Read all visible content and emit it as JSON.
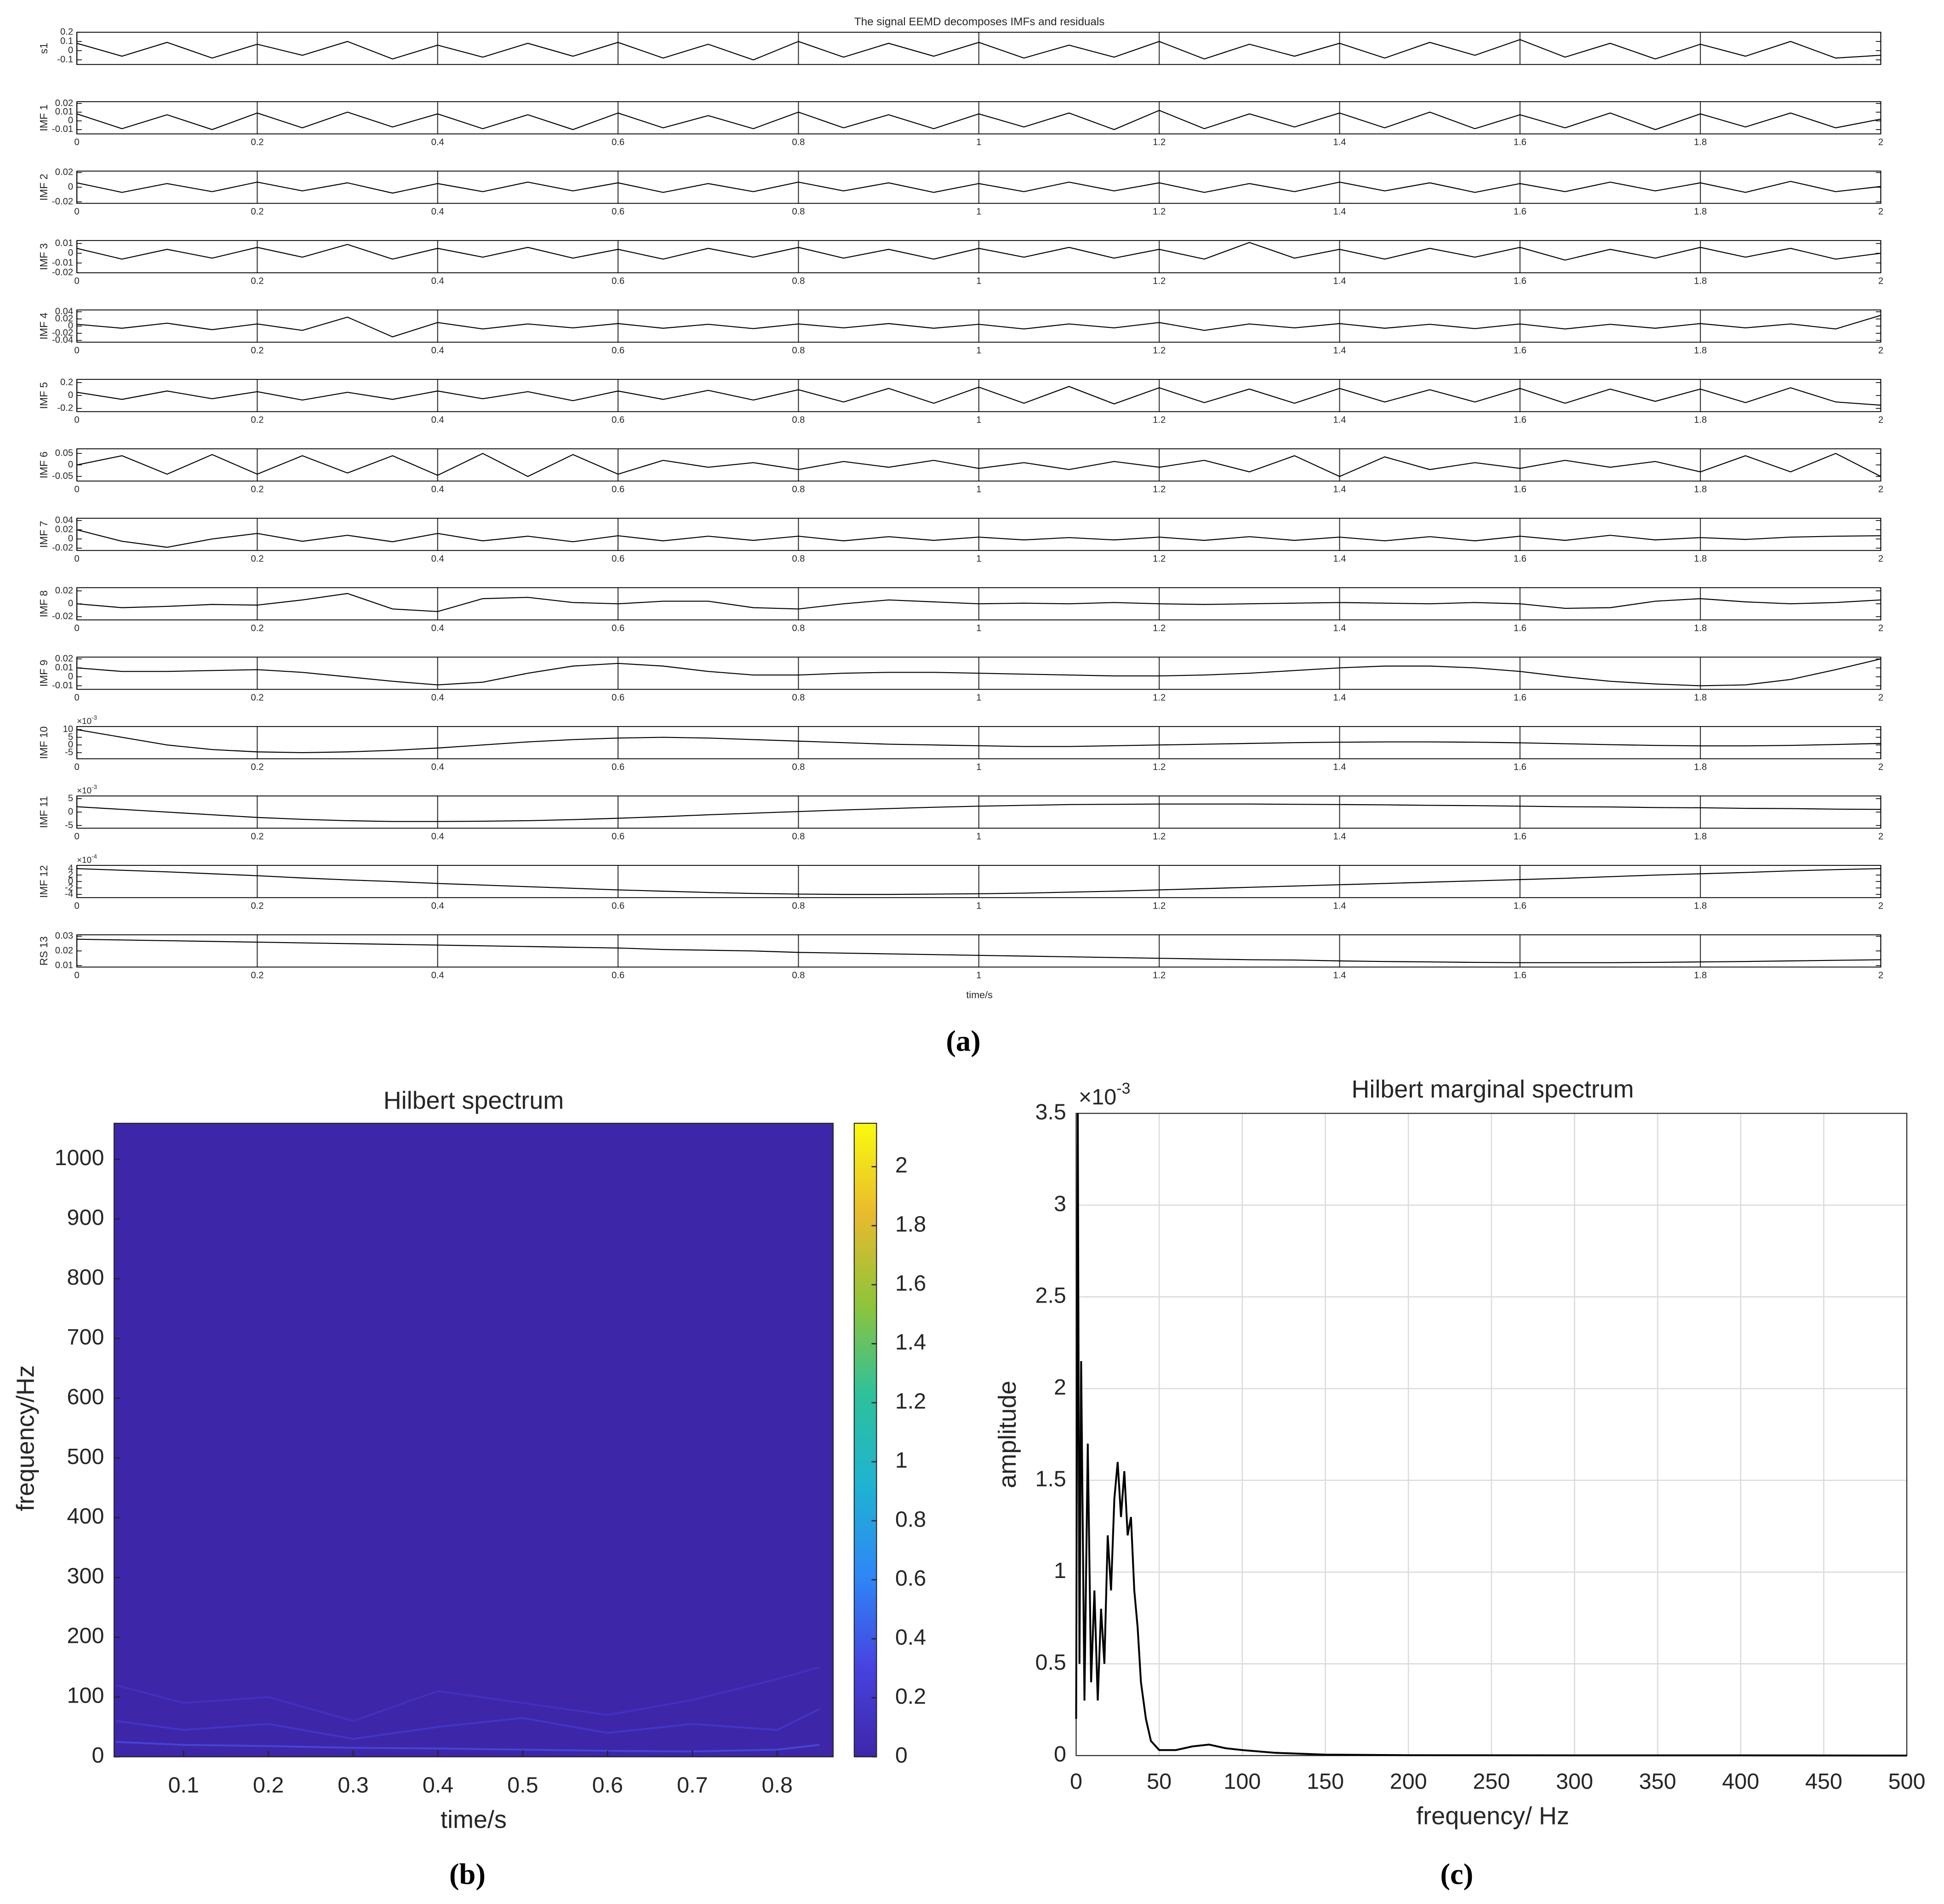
{
  "chart_data": [
    {
      "type": "stacked-lines",
      "label": "(a)",
      "title": "The signal EEMD decomposes IMFs and residuals",
      "xlabel": "time/s",
      "xlim": [
        0,
        2
      ],
      "xticks": [
        0,
        0.2,
        0.4,
        0.6,
        0.8,
        1,
        1.2,
        1.4,
        1.6,
        1.8,
        2
      ],
      "x": [
        0,
        0.05,
        0.1,
        0.15,
        0.2,
        0.25,
        0.3,
        0.35,
        0.4,
        0.45,
        0.5,
        0.55,
        0.6,
        0.65,
        0.7,
        0.75,
        0.8,
        0.85,
        0.9,
        0.95,
        1,
        1.05,
        1.1,
        1.15,
        1.2,
        1.25,
        1.3,
        1.35,
        1.4,
        1.45,
        1.5,
        1.55,
        1.6,
        1.65,
        1.7,
        1.75,
        1.8,
        1.85,
        1.9,
        1.95,
        2
      ],
      "panels": [
        {
          "ylabel": "s1",
          "ylim": [
            -0.15,
            0.2
          ],
          "yticks": [
            -0.1,
            0,
            0.1,
            0.2
          ],
          "xticklabels": false,
          "values": [
            0.08,
            -0.06,
            0.09,
            -0.08,
            0.07,
            -0.05,
            0.1,
            -0.09,
            0.06,
            -0.07,
            0.08,
            -0.06,
            0.09,
            -0.08,
            0.07,
            -0.1,
            0.1,
            -0.07,
            0.08,
            -0.06,
            0.09,
            -0.08,
            0.06,
            -0.07,
            0.1,
            -0.09,
            0.07,
            -0.06,
            0.08,
            -0.08,
            0.09,
            -0.05,
            0.12,
            -0.07,
            0.08,
            -0.09,
            0.07,
            -0.06,
            0.1,
            -0.08,
            -0.05
          ]
        },
        {
          "ylabel": "IMF 1",
          "ylim": [
            -0.015,
            0.022
          ],
          "yticks": [
            -0.01,
            0,
            0.01,
            0.02
          ],
          "values": [
            0.008,
            -0.009,
            0.007,
            -0.01,
            0.009,
            -0.008,
            0.01,
            -0.007,
            0.008,
            -0.009,
            0.007,
            -0.01,
            0.009,
            -0.008,
            0.006,
            -0.009,
            0.01,
            -0.008,
            0.007,
            -0.009,
            0.008,
            -0.007,
            0.009,
            -0.01,
            0.012,
            -0.009,
            0.008,
            -0.007,
            0.009,
            -0.008,
            0.01,
            -0.009,
            0.007,
            -0.008,
            0.009,
            -0.01,
            0.008,
            -0.007,
            0.009,
            -0.008,
            0.002
          ]
        },
        {
          "ylabel": "IMF 2",
          "ylim": [
            -0.022,
            0.022
          ],
          "yticks": [
            -0.02,
            0,
            0.02
          ],
          "values": [
            0.006,
            -0.007,
            0.005,
            -0.006,
            0.007,
            -0.005,
            0.006,
            -0.008,
            0.005,
            -0.006,
            0.007,
            -0.005,
            0.006,
            -0.007,
            0.005,
            -0.006,
            0.007,
            -0.005,
            0.006,
            -0.007,
            0.005,
            -0.006,
            0.007,
            -0.005,
            0.006,
            -0.007,
            0.005,
            -0.006,
            0.007,
            -0.005,
            0.006,
            -0.007,
            0.005,
            -0.006,
            0.007,
            -0.005,
            0.006,
            -0.007,
            0.008,
            -0.006,
            0.001
          ]
        },
        {
          "ylabel": "IMF 3",
          "ylim": [
            -0.02,
            0.013
          ],
          "yticks": [
            -0.02,
            -0.01,
            0,
            0.01
          ],
          "values": [
            0.005,
            -0.006,
            0.004,
            -0.005,
            0.006,
            -0.004,
            0.009,
            -0.006,
            0.005,
            -0.004,
            0.006,
            -0.005,
            0.004,
            -0.006,
            0.005,
            -0.004,
            0.006,
            -0.005,
            0.004,
            -0.006,
            0.005,
            -0.004,
            0.006,
            -0.005,
            0.004,
            -0.006,
            0.011,
            -0.005,
            0.004,
            -0.006,
            0.005,
            -0.004,
            0.006,
            -0.007,
            0.004,
            -0.005,
            0.006,
            -0.004,
            0.005,
            -0.006,
            0
          ]
        },
        {
          "ylabel": "IMF 4",
          "ylim": [
            -0.045,
            0.045
          ],
          "yticks": [
            -0.04,
            -0.02,
            0,
            0.02,
            0.04
          ],
          "values": [
            0.005,
            -0.006,
            0.008,
            -0.01,
            0.006,
            -0.012,
            0.025,
            -0.03,
            0.01,
            -0.008,
            0.006,
            -0.005,
            0.007,
            -0.006,
            0.005,
            -0.007,
            0.006,
            -0.005,
            0.007,
            -0.006,
            0.005,
            -0.008,
            0.006,
            -0.005,
            0.01,
            -0.012,
            0.006,
            -0.005,
            0.007,
            -0.006,
            0.005,
            -0.007,
            0.006,
            -0.008,
            0.005,
            -0.006,
            0.007,
            -0.005,
            0.006,
            -0.008,
            0.03
          ]
        },
        {
          "ylabel": "IMF 5",
          "ylim": [
            -0.25,
            0.25
          ],
          "yticks": [
            -0.2,
            0,
            0.2
          ],
          "values": [
            0.05,
            -0.06,
            0.07,
            -0.05,
            0.06,
            -0.07,
            0.05,
            -0.06,
            0.07,
            -0.05,
            0.06,
            -0.08,
            0.07,
            -0.06,
            0.08,
            -0.07,
            0.09,
            -0.1,
            0.11,
            -0.12,
            0.13,
            -0.12,
            0.14,
            -0.13,
            0.12,
            -0.11,
            0.1,
            -0.12,
            0.11,
            -0.1,
            0.09,
            -0.1,
            0.11,
            -0.12,
            0.1,
            -0.09,
            0.1,
            -0.11,
            0.12,
            -0.1,
            -0.15
          ]
        },
        {
          "ylabel": "IMF 6",
          "ylim": [
            -0.07,
            0.07
          ],
          "yticks": [
            -0.05,
            0,
            0.05
          ],
          "values": [
            0,
            0.04,
            -0.04,
            0.045,
            -0.04,
            0.04,
            -0.035,
            0.04,
            -0.045,
            0.05,
            -0.05,
            0.045,
            -0.04,
            0.02,
            -0.01,
            0.01,
            -0.02,
            0.015,
            -0.01,
            0.02,
            -0.015,
            0.01,
            -0.02,
            0.015,
            -0.01,
            0.02,
            -0.03,
            0.04,
            -0.05,
            0.035,
            -0.02,
            0.01,
            -0.015,
            0.02,
            -0.01,
            0.015,
            -0.03,
            0.04,
            -0.03,
            0.05,
            -0.05
          ]
        },
        {
          "ylabel": "IMF 7",
          "ylim": [
            -0.025,
            0.045
          ],
          "yticks": [
            -0.02,
            0,
            0.02,
            0.04
          ],
          "values": [
            0.02,
            -0.005,
            -0.018,
            0,
            0.012,
            -0.005,
            0.008,
            -0.006,
            0.012,
            -0.004,
            0.006,
            -0.006,
            0.007,
            -0.004,
            0.006,
            -0.003,
            0.006,
            -0.004,
            0.005,
            -0.003,
            0.004,
            -0.002,
            0.003,
            -0.002,
            0.004,
            -0.003,
            0.005,
            -0.003,
            0.004,
            -0.004,
            0.005,
            -0.004,
            0.006,
            -0.003,
            0.008,
            -0.002,
            0.003,
            -0.001,
            0.004,
            0.006,
            0.007
          ]
        },
        {
          "ylabel": "IMF 8",
          "ylim": [
            -0.025,
            0.025
          ],
          "yticks": [
            -0.02,
            0,
            0.02
          ],
          "values": [
            0,
            -0.006,
            -0.004,
            -0.001,
            -0.002,
            0.006,
            0.016,
            -0.008,
            -0.012,
            0.008,
            0.01,
            0.002,
            0,
            0.004,
            0.004,
            -0.006,
            -0.008,
            0,
            0.006,
            0.003,
            0,
            0.001,
            0,
            0.002,
            0,
            -0.001,
            0,
            0.001,
            0.002,
            0.001,
            0,
            0.002,
            0,
            -0.007,
            -0.006,
            0.004,
            0.008,
            0.003,
            0,
            0.002,
            0.006
          ]
        },
        {
          "ylabel": "IMF 9",
          "ylim": [
            -0.014,
            0.022
          ],
          "yticks": [
            -0.01,
            0,
            0.01,
            0.02
          ],
          "values": [
            0.01,
            0.006,
            0.006,
            0.007,
            0.008,
            0.005,
            0,
            -0.005,
            -0.009,
            -0.006,
            0.004,
            0.012,
            0.015,
            0.012,
            0.006,
            0.002,
            0.002,
            0.004,
            0.005,
            0.005,
            0.004,
            0.003,
            0.002,
            0.001,
            0.001,
            0.002,
            0.004,
            0.007,
            0.01,
            0.012,
            0.012,
            0.01,
            0.006,
            0,
            -0.005,
            -0.008,
            -0.01,
            -0.009,
            -0.003,
            0.008,
            0.02
          ]
        },
        {
          "ylabel": "IMF 10",
          "ylim": [
            -9,
            12
          ],
          "yticks": [
            -5,
            0,
            5,
            10
          ],
          "multiplier": {
            "base": "×10",
            "exponent": "-3"
          },
          "values": [
            10,
            5,
            0,
            -3,
            -4.5,
            -5,
            -4.5,
            -3.5,
            -2,
            0,
            2,
            3.5,
            4.5,
            5,
            4.5,
            3.5,
            2.5,
            1.5,
            0.5,
            0,
            -0.5,
            -1,
            -1,
            -0.5,
            0,
            0.5,
            1,
            1.5,
            1.8,
            2,
            2,
            1.8,
            1.4,
            0.8,
            0.2,
            -0.3,
            -0.6,
            -0.6,
            -0.3,
            0.3,
            1
          ]
        },
        {
          "ylabel": "IMF 11",
          "ylim": [
            -6,
            6
          ],
          "yticks": [
            -5,
            0,
            5
          ],
          "multiplier": {
            "base": "×10",
            "exponent": "-3"
          },
          "values": [
            2,
            1,
            0,
            -1,
            -2,
            -2.7,
            -3.2,
            -3.5,
            -3.5,
            -3.4,
            -3.2,
            -2.8,
            -2.3,
            -1.7,
            -1,
            -0.4,
            0.2,
            0.8,
            1.3,
            1.8,
            2.2,
            2.5,
            2.8,
            2.9,
            3,
            3,
            3,
            2.9,
            2.8,
            2.7,
            2.5,
            2.4,
            2.2,
            2,
            1.9,
            1.7,
            1.6,
            1.4,
            1.3,
            1.1,
            1
          ]
        },
        {
          "ylabel": "IMF 12",
          "ylim": [
            -5,
            5
          ],
          "yticks": [
            -4,
            -2,
            0,
            2,
            4
          ],
          "multiplier": {
            "base": "×10",
            "exponent": "-4"
          },
          "values": [
            4,
            3.5,
            3,
            2.4,
            1.8,
            1.1,
            0.5,
            0,
            -0.6,
            -1.1,
            -1.6,
            -2.1,
            -2.6,
            -3,
            -3.4,
            -3.7,
            -3.9,
            -4,
            -4,
            -3.9,
            -3.8,
            -3.6,
            -3.3,
            -3,
            -2.6,
            -2.2,
            -1.8,
            -1.4,
            -1,
            -0.6,
            -0.2,
            0.2,
            0.6,
            1,
            1.5,
            2,
            2.4,
            2.8,
            3.3,
            3.7,
            4
          ]
        },
        {
          "ylabel": "RS 13",
          "ylim": [
            0.009,
            0.031
          ],
          "yticks": [
            0.01,
            0.02,
            0.03
          ],
          "values": [
            0.028,
            0.0275,
            0.027,
            0.0265,
            0.026,
            0.0255,
            0.025,
            0.0245,
            0.024,
            0.0235,
            0.023,
            0.0225,
            0.022,
            0.021,
            0.0205,
            0.02,
            0.019,
            0.0185,
            0.018,
            0.0175,
            0.017,
            0.0165,
            0.016,
            0.0155,
            0.015,
            0.0145,
            0.014,
            0.0138,
            0.0132,
            0.0128,
            0.0125,
            0.0122,
            0.012,
            0.012,
            0.012,
            0.0122,
            0.0125,
            0.0128,
            0.0132,
            0.0136,
            0.014
          ]
        }
      ]
    },
    {
      "type": "heatmap",
      "label": "(b)",
      "title": "Hilbert spectrum",
      "xlabel": "time/s",
      "ylabel": "frequency/Hz",
      "xlim": [
        0.018,
        0.866
      ],
      "xticks": [
        0.1,
        0.2,
        0.3,
        0.4,
        0.5,
        0.6,
        0.7,
        0.8
      ],
      "ylim": [
        0,
        1060
      ],
      "yticks": [
        0,
        100,
        200,
        300,
        400,
        500,
        600,
        700,
        800,
        900,
        1000
      ],
      "clim": [
        0,
        2.147
      ],
      "cticks": [
        0,
        0.2,
        0.4,
        0.6,
        0.8,
        1,
        1.2,
        1.4,
        1.6,
        1.8,
        2
      ],
      "colormap": [
        "#3e26a8",
        "#4743e0",
        "#2e87f7",
        "#1fb3d2",
        "#2dc19b",
        "#8fc43a",
        "#e9ba2e",
        "#f9fb0e"
      ],
      "x": [
        0.02,
        0.1,
        0.2,
        0.3,
        0.4,
        0.5,
        0.6,
        0.7,
        0.8,
        0.85
      ],
      "series": [
        {
          "level": 0.35,
          "values": [
            25,
            20,
            18,
            15,
            14,
            12,
            10,
            9,
            12,
            20
          ]
        },
        {
          "level": 0.2,
          "values": [
            60,
            45,
            55,
            30,
            50,
            65,
            40,
            55,
            45,
            80
          ]
        },
        {
          "level": 0.15,
          "values": [
            120,
            90,
            100,
            60,
            110,
            90,
            70,
            95,
            130,
            150
          ]
        }
      ]
    },
    {
      "type": "line",
      "label": "(c)",
      "title": "Hilbert marginal spectrum",
      "xlabel": "frequency/ Hz",
      "ylabel": "amplitude",
      "xlim": [
        0,
        500
      ],
      "xticks": [
        0,
        50,
        100,
        150,
        200,
        250,
        300,
        350,
        400,
        450,
        500
      ],
      "ylim": [
        0,
        3.5
      ],
      "yticks": [
        0,
        0.5,
        1,
        1.5,
        2,
        2.5,
        3,
        3.5
      ],
      "multiplier": {
        "base": "×10",
        "exponent": "-3"
      },
      "grid": true,
      "color": "#000000",
      "x": [
        0,
        1,
        2,
        3,
        5,
        7,
        9,
        11,
        13,
        15,
        17,
        19,
        21,
        23,
        25,
        27,
        29,
        31,
        33,
        35,
        37,
        39,
        42,
        45,
        50,
        60,
        70,
        80,
        90,
        100,
        120,
        150,
        200,
        300,
        400,
        500
      ],
      "values": [
        0.2,
        3.5,
        0.5,
        2.15,
        0.3,
        1.7,
        0.4,
        0.9,
        0.3,
        0.8,
        0.5,
        1.2,
        0.9,
        1.4,
        1.6,
        1.3,
        1.55,
        1.2,
        1.3,
        0.9,
        0.7,
        0.4,
        0.2,
        0.08,
        0.03,
        0.03,
        0.05,
        0.06,
        0.04,
        0.03,
        0.015,
        0.005,
        0.002,
        0.001,
        0.001,
        0
      ]
    }
  ]
}
